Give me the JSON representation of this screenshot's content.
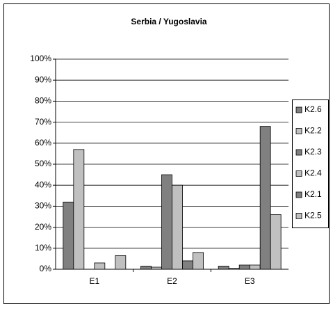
{
  "chart_data": {
    "type": "bar",
    "title": "Serbia / Yugoslavia",
    "categories": [
      "E1",
      "E2",
      "E3"
    ],
    "series": [
      {
        "name": "K2.6",
        "color": "#808080",
        "values": [
          32,
          1.5,
          1.5
        ]
      },
      {
        "name": "K2.2",
        "color": "#c0c0c0",
        "values": [
          57,
          1,
          0.5
        ]
      },
      {
        "name": "K2.3",
        "color": "#808080",
        "values": [
          0,
          45,
          2
        ]
      },
      {
        "name": "K2.4",
        "color": "#c0c0c0",
        "values": [
          3,
          40,
          2
        ]
      },
      {
        "name": "K2.1",
        "color": "#808080",
        "values": [
          0,
          4,
          68
        ]
      },
      {
        "name": "K2.5",
        "color": "#c0c0c0",
        "values": [
          6.5,
          8,
          26
        ]
      }
    ],
    "ylim": [
      0,
      100
    ],
    "yticks": [
      {
        "value": 0,
        "label": "0%"
      },
      {
        "value": 10,
        "label": "10%"
      },
      {
        "value": 20,
        "label": "20%"
      },
      {
        "value": 30,
        "label": "30%"
      },
      {
        "value": 40,
        "label": "40%"
      },
      {
        "value": 50,
        "label": "50%"
      },
      {
        "value": 60,
        "label": "60%"
      },
      {
        "value": 70,
        "label": "70%"
      },
      {
        "value": 80,
        "label": "80%"
      },
      {
        "value": 90,
        "label": "90%"
      },
      {
        "value": 100,
        "label": "100%"
      }
    ],
    "grid": true,
    "legend": "right"
  }
}
